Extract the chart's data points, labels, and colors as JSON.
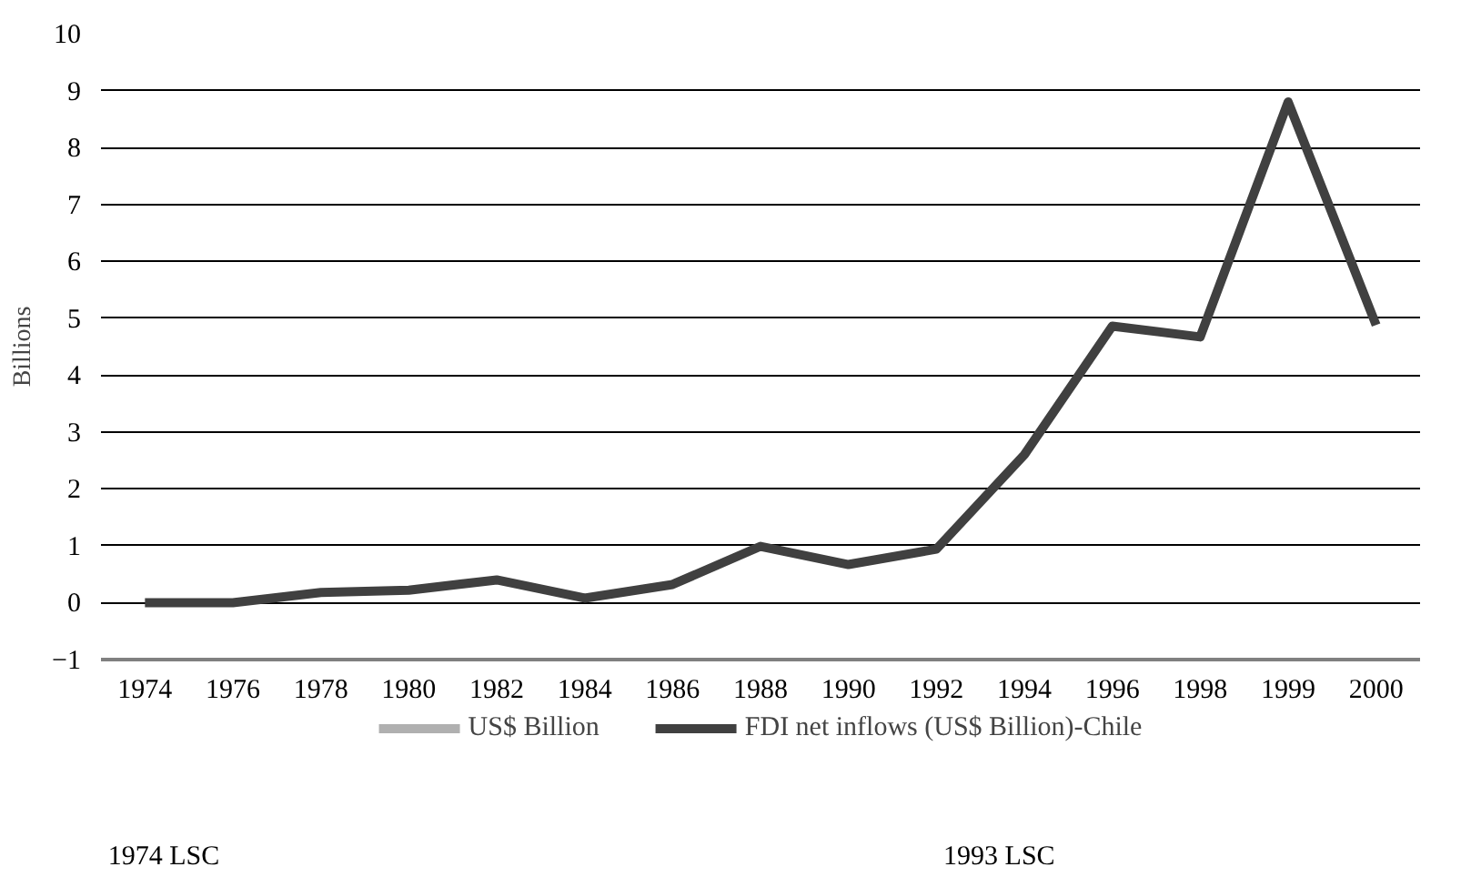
{
  "chart_data": {
    "type": "line",
    "ylabel": "Billions",
    "categories": [
      "1974",
      "1976",
      "1978",
      "1980",
      "1982",
      "1984",
      "1986",
      "1988",
      "1990",
      "1992",
      "1994",
      "1996",
      "1998",
      "1999",
      "2000"
    ],
    "series": [
      {
        "name": "US$ Billion",
        "color": "#b0b0b0",
        "values": [
          null,
          null,
          null,
          null,
          null,
          null,
          null,
          null,
          null,
          null,
          null,
          null,
          null,
          null,
          null
        ]
      },
      {
        "name": "FDI net inflows (US$ Billion)-Chile",
        "color": "#404040",
        "values": [
          0,
          0,
          0.18,
          0.22,
          0.4,
          0.08,
          0.32,
          0.99,
          0.67,
          0.94,
          2.6,
          4.86,
          4.67,
          8.8,
          4.88
        ]
      }
    ],
    "ylim": [
      -1,
      10
    ],
    "yticks": [
      -1,
      0,
      1,
      2,
      3,
      4,
      5,
      6,
      7,
      8,
      9,
      10
    ],
    "grid": "y",
    "legend": "bottom",
    "marker": "none",
    "line_style": "solid",
    "annotations": [
      "1974 LSC",
      "1993 LSC"
    ]
  }
}
